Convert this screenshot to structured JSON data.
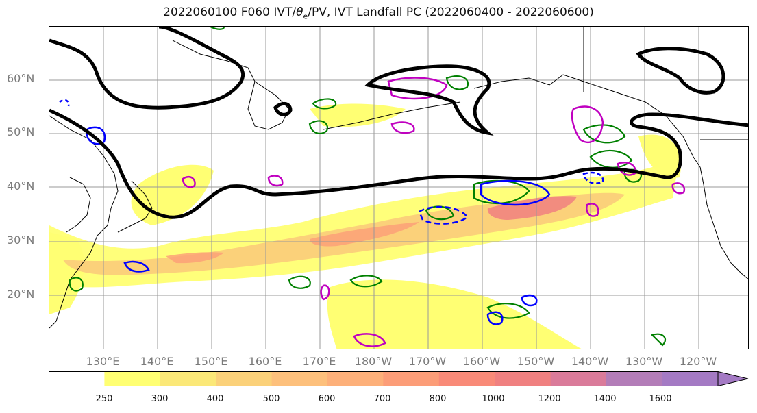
{
  "title": "2022060100 F060 IVT/θe/PV, IVT Landfall PC (2022060400 - 2022060600)",
  "title_parts": {
    "prefix": "2022060100 F060 IVT/",
    "theta": "θ",
    "sub": "e",
    "suffix": "/PV, IVT Landfall PC (2022060400 - 2022060600)"
  },
  "lat_labels": [
    "60°N",
    "50°N",
    "40°N",
    "30°N",
    "20°N"
  ],
  "lon_labels": [
    "130°E",
    "140°E",
    "150°E",
    "160°E",
    "170°E",
    "180°W",
    "170°W",
    "160°W",
    "150°W",
    "140°W",
    "130°W",
    "120°W"
  ],
  "colorbar": {
    "tick_labels": [
      "250",
      "300",
      "400",
      "500",
      "600",
      "700",
      "800",
      "1000",
      "1200",
      "1400",
      "1600"
    ],
    "colors": [
      "#ffffff",
      "#ffff73",
      "#fbe878",
      "#fbd17a",
      "#fdc07c",
      "#fdb07a",
      "#fc9d78",
      "#f98a78",
      "#f08080",
      "#da7b9a",
      "#b37db8",
      "#a47ac4"
    ]
  },
  "legend_colors": {
    "ivt_fill_low": "#ffff73",
    "ivt_fill_high": "#f08080",
    "landfall_pc": "#000000",
    "theta_e": "#008000",
    "pv_positive": "#0000ff",
    "pv_other": "#c000c0"
  }
}
